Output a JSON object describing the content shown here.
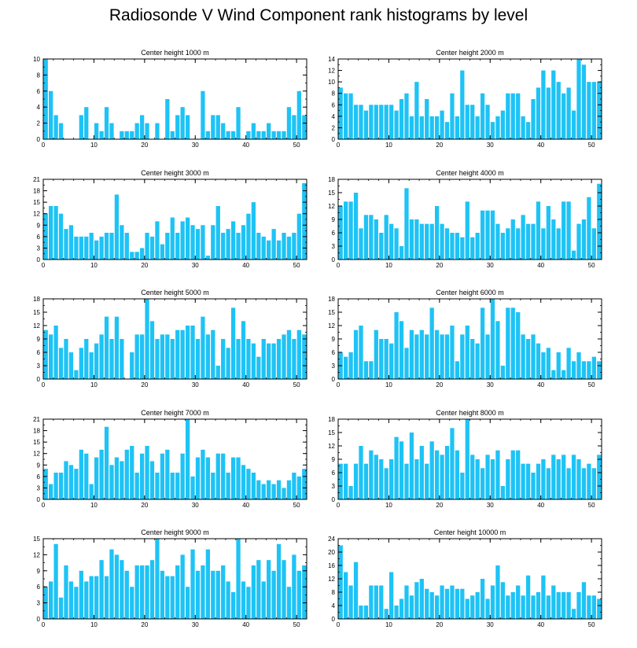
{
  "title": "Radiosonde V Wind Component rank histograms by level",
  "bar_color": "#1ec3f5",
  "chart_data": [
    {
      "type": "bar",
      "title": "Center height 1000 m",
      "xlim": [
        0,
        52
      ],
      "ylim": [
        0,
        10
      ],
      "xticks": [
        0,
        10,
        20,
        30,
        40,
        50
      ],
      "yticks": [
        0,
        2,
        4,
        6,
        8,
        10
      ],
      "x": [
        0,
        1,
        2,
        3,
        4,
        5,
        6,
        7,
        8,
        9,
        10,
        11,
        12,
        13,
        14,
        15,
        16,
        17,
        18,
        19,
        20,
        21,
        22,
        23,
        24,
        25,
        26,
        27,
        28,
        29,
        30,
        31,
        32,
        33,
        34,
        35,
        36,
        37,
        38,
        39,
        40,
        41,
        42,
        43,
        44,
        45,
        46,
        47,
        48,
        49,
        50,
        51
      ],
      "values": [
        10,
        6,
        3,
        2,
        0,
        0,
        0,
        3,
        4,
        0,
        2,
        1,
        4,
        2,
        0,
        1,
        1,
        1,
        2,
        3,
        2,
        0,
        2,
        0,
        5,
        1,
        3,
        4,
        3,
        0,
        0,
        6,
        1,
        3,
        3,
        2,
        1,
        1,
        4,
        0,
        1,
        2,
        1,
        1,
        2,
        1,
        1,
        1,
        4,
        3,
        6,
        3
      ]
    },
    {
      "type": "bar",
      "title": "Center height 2000 m",
      "xlim": [
        0,
        52
      ],
      "ylim": [
        0,
        14
      ],
      "xticks": [
        0,
        10,
        20,
        30,
        40,
        50
      ],
      "yticks": [
        0,
        2,
        4,
        6,
        8,
        10,
        12,
        14
      ],
      "x": [
        0,
        1,
        2,
        3,
        4,
        5,
        6,
        7,
        8,
        9,
        10,
        11,
        12,
        13,
        14,
        15,
        16,
        17,
        18,
        19,
        20,
        21,
        22,
        23,
        24,
        25,
        26,
        27,
        28,
        29,
        30,
        31,
        32,
        33,
        34,
        35,
        36,
        37,
        38,
        39,
        40,
        41,
        42,
        43,
        44,
        45,
        46,
        47,
        48,
        49,
        50,
        51
      ],
      "values": [
        9,
        8,
        8,
        6,
        6,
        5,
        6,
        6,
        6,
        6,
        6,
        5,
        7,
        8,
        4,
        10,
        4,
        7,
        4,
        4,
        5,
        3,
        8,
        4,
        12,
        6,
        6,
        4,
        8,
        6,
        3,
        4,
        5,
        8,
        8,
        8,
        4,
        3,
        7,
        9,
        12,
        9,
        12,
        10,
        8,
        9,
        5,
        14,
        13,
        10,
        10,
        10
      ]
    },
    {
      "type": "bar",
      "title": "Center height 3000 m",
      "xlim": [
        0,
        52
      ],
      "ylim": [
        0,
        21
      ],
      "xticks": [
        0,
        10,
        20,
        30,
        40,
        50
      ],
      "yticks": [
        0,
        3,
        6,
        9,
        12,
        15,
        18,
        21
      ],
      "x": [
        0,
        1,
        2,
        3,
        4,
        5,
        6,
        7,
        8,
        9,
        10,
        11,
        12,
        13,
        14,
        15,
        16,
        17,
        18,
        19,
        20,
        21,
        22,
        23,
        24,
        25,
        26,
        27,
        28,
        29,
        30,
        31,
        32,
        33,
        34,
        35,
        36,
        37,
        38,
        39,
        40,
        41,
        42,
        43,
        44,
        45,
        46,
        47,
        48,
        49,
        50,
        51
      ],
      "values": [
        12,
        14,
        14,
        12,
        8,
        9,
        6,
        6,
        6,
        7,
        5,
        6,
        7,
        7,
        17,
        9,
        7,
        2,
        2,
        3,
        7,
        6,
        10,
        4,
        7,
        11,
        7,
        10,
        11,
        9,
        8,
        9,
        1,
        9,
        14,
        7,
        8,
        10,
        7,
        9,
        12,
        15,
        7,
        6,
        5,
        8,
        5,
        7,
        6,
        7,
        12,
        20
      ]
    },
    {
      "type": "bar",
      "title": "Center height 4000 m",
      "xlim": [
        0,
        52
      ],
      "ylim": [
        0,
        18
      ],
      "xticks": [
        0,
        10,
        20,
        30,
        40,
        50
      ],
      "yticks": [
        0,
        3,
        6,
        9,
        12,
        15,
        18
      ],
      "x": [
        0,
        1,
        2,
        3,
        4,
        5,
        6,
        7,
        8,
        9,
        10,
        11,
        12,
        13,
        14,
        15,
        16,
        17,
        18,
        19,
        20,
        21,
        22,
        23,
        24,
        25,
        26,
        27,
        28,
        29,
        30,
        31,
        32,
        33,
        34,
        35,
        36,
        37,
        38,
        39,
        40,
        41,
        42,
        43,
        44,
        45,
        46,
        47,
        48,
        49,
        50,
        51
      ],
      "values": [
        12,
        13,
        13,
        15,
        7,
        10,
        10,
        9,
        6,
        10,
        8,
        7,
        3,
        16,
        9,
        9,
        8,
        8,
        8,
        12,
        8,
        7,
        6,
        6,
        5,
        13,
        5,
        6,
        11,
        11,
        11,
        8,
        6,
        7,
        9,
        7,
        10,
        8,
        8,
        13,
        7,
        12,
        9,
        7,
        13,
        13,
        2,
        8,
        9,
        14,
        7,
        17
      ]
    },
    {
      "type": "bar",
      "title": "Center height 5000 m",
      "xlim": [
        0,
        52
      ],
      "ylim": [
        0,
        18
      ],
      "xticks": [
        0,
        10,
        20,
        30,
        40,
        50
      ],
      "yticks": [
        0,
        3,
        6,
        9,
        12,
        15,
        18
      ],
      "x": [
        0,
        1,
        2,
        3,
        4,
        5,
        6,
        7,
        8,
        9,
        10,
        11,
        12,
        13,
        14,
        15,
        16,
        17,
        18,
        19,
        20,
        21,
        22,
        23,
        24,
        25,
        26,
        27,
        28,
        29,
        30,
        31,
        32,
        33,
        34,
        35,
        36,
        37,
        38,
        39,
        40,
        41,
        42,
        43,
        44,
        45,
        46,
        47,
        48,
        49,
        50,
        51
      ],
      "values": [
        11,
        10,
        12,
        7,
        9,
        6,
        2,
        7,
        9,
        6,
        8,
        10,
        14,
        9,
        14,
        9,
        0,
        6,
        10,
        10,
        18,
        13,
        9,
        10,
        10,
        9,
        11,
        11,
        12,
        12,
        9,
        14,
        10,
        11,
        3,
        9,
        7,
        16,
        9,
        13,
        9,
        8,
        5,
        9,
        8,
        8,
        9,
        10,
        11,
        9,
        11,
        10
      ]
    },
    {
      "type": "bar",
      "title": "Center height 6000 m",
      "xlim": [
        0,
        52
      ],
      "ylim": [
        0,
        18
      ],
      "xticks": [
        0,
        10,
        20,
        30,
        40,
        50
      ],
      "yticks": [
        0,
        3,
        6,
        9,
        12,
        15,
        18
      ],
      "x": [
        0,
        1,
        2,
        3,
        4,
        5,
        6,
        7,
        8,
        9,
        10,
        11,
        12,
        13,
        14,
        15,
        16,
        17,
        18,
        19,
        20,
        21,
        22,
        23,
        24,
        25,
        26,
        27,
        28,
        29,
        30,
        31,
        32,
        33,
        34,
        35,
        36,
        37,
        38,
        39,
        40,
        41,
        42,
        43,
        44,
        45,
        46,
        47,
        48,
        49,
        50,
        51
      ],
      "values": [
        6,
        5,
        6,
        11,
        12,
        4,
        4,
        11,
        9,
        9,
        8,
        15,
        13,
        7,
        11,
        10,
        11,
        10,
        16,
        11,
        10,
        10,
        12,
        4,
        10,
        12,
        9,
        8,
        16,
        10,
        18,
        13,
        3,
        16,
        16,
        15,
        10,
        9,
        10,
        8,
        6,
        7,
        2,
        6,
        2,
        7,
        4,
        6,
        4,
        4,
        5,
        4
      ]
    },
    {
      "type": "bar",
      "title": "Center height 7000 m",
      "xlim": [
        0,
        52
      ],
      "ylim": [
        0,
        21
      ],
      "xticks": [
        0,
        10,
        20,
        30,
        40,
        50
      ],
      "yticks": [
        0,
        3,
        6,
        9,
        12,
        15,
        18,
        21
      ],
      "x": [
        0,
        1,
        2,
        3,
        4,
        5,
        6,
        7,
        8,
        9,
        10,
        11,
        12,
        13,
        14,
        15,
        16,
        17,
        18,
        19,
        20,
        21,
        22,
        23,
        24,
        25,
        26,
        27,
        28,
        29,
        30,
        31,
        32,
        33,
        34,
        35,
        36,
        37,
        38,
        39,
        40,
        41,
        42,
        43,
        44,
        45,
        46,
        47,
        48,
        49,
        50,
        51
      ],
      "values": [
        8,
        4,
        7,
        7,
        10,
        9,
        8,
        13,
        12,
        4,
        11,
        13,
        19,
        9,
        11,
        10,
        13,
        14,
        7,
        12,
        14,
        10,
        7,
        12,
        13,
        7,
        7,
        12,
        21,
        6,
        11,
        13,
        11,
        7,
        12,
        12,
        7,
        11,
        11,
        9,
        8,
        7,
        5,
        4,
        5,
        4,
        5,
        3,
        5,
        7,
        6,
        8
      ]
    },
    {
      "type": "bar",
      "title": "Center height 8000 m",
      "xlim": [
        0,
        52
      ],
      "ylim": [
        0,
        18
      ],
      "xticks": [
        0,
        10,
        20,
        30,
        40,
        50
      ],
      "yticks": [
        0,
        3,
        6,
        9,
        12,
        15,
        18
      ],
      "x": [
        0,
        1,
        2,
        3,
        4,
        5,
        6,
        7,
        8,
        9,
        10,
        11,
        12,
        13,
        14,
        15,
        16,
        17,
        18,
        19,
        20,
        21,
        22,
        23,
        24,
        25,
        26,
        27,
        28,
        29,
        30,
        31,
        32,
        33,
        34,
        35,
        36,
        37,
        38,
        39,
        40,
        41,
        42,
        43,
        44,
        45,
        46,
        47,
        48,
        49,
        50,
        51
      ],
      "values": [
        8,
        8,
        3,
        8,
        12,
        8,
        11,
        10,
        9,
        7,
        9,
        14,
        13,
        8,
        15,
        9,
        12,
        8,
        13,
        11,
        10,
        12,
        16,
        11,
        6,
        18,
        10,
        9,
        7,
        10,
        9,
        11,
        3,
        9,
        11,
        11,
        8,
        8,
        6,
        8,
        9,
        7,
        10,
        9,
        10,
        7,
        10,
        9,
        7,
        8,
        7,
        10
      ]
    },
    {
      "type": "bar",
      "title": "Center height 9000 m",
      "xlim": [
        0,
        52
      ],
      "ylim": [
        0,
        15
      ],
      "xticks": [
        0,
        10,
        20,
        30,
        40,
        50
      ],
      "yticks": [
        0,
        3,
        6,
        9,
        12,
        15
      ],
      "x": [
        0,
        1,
        2,
        3,
        4,
        5,
        6,
        7,
        8,
        9,
        10,
        11,
        12,
        13,
        14,
        15,
        16,
        17,
        18,
        19,
        20,
        21,
        22,
        23,
        24,
        25,
        26,
        27,
        28,
        29,
        30,
        31,
        32,
        33,
        34,
        35,
        36,
        37,
        38,
        39,
        40,
        41,
        42,
        43,
        44,
        45,
        46,
        47,
        48,
        49,
        50,
        51
      ],
      "values": [
        6,
        7,
        14,
        4,
        10,
        7,
        6,
        9,
        7,
        8,
        8,
        11,
        8,
        13,
        12,
        11,
        9,
        6,
        10,
        10,
        10,
        11,
        15,
        9,
        8,
        8,
        10,
        12,
        6,
        13,
        9,
        10,
        13,
        9,
        9,
        10,
        7,
        5,
        15,
        7,
        6,
        10,
        11,
        7,
        11,
        9,
        14,
        11,
        6,
        12,
        9,
        10
      ]
    },
    {
      "type": "bar",
      "title": "Center height 10000 m",
      "xlim": [
        0,
        52
      ],
      "ylim": [
        0,
        24
      ],
      "xticks": [
        0,
        10,
        20,
        30,
        40,
        50
      ],
      "yticks": [
        0,
        4,
        8,
        12,
        16,
        20,
        24
      ],
      "x": [
        0,
        1,
        2,
        3,
        4,
        5,
        6,
        7,
        8,
        9,
        10,
        11,
        12,
        13,
        14,
        15,
        16,
        17,
        18,
        19,
        20,
        21,
        22,
        23,
        24,
        25,
        26,
        27,
        28,
        29,
        30,
        31,
        32,
        33,
        34,
        35,
        36,
        37,
        38,
        39,
        40,
        41,
        42,
        43,
        44,
        45,
        46,
        47,
        48,
        49,
        50,
        51
      ],
      "values": [
        22,
        14,
        10,
        17,
        4,
        4,
        10,
        10,
        10,
        3,
        14,
        4,
        6,
        10,
        7,
        11,
        12,
        9,
        8,
        7,
        10,
        9,
        10,
        9,
        9,
        6,
        7,
        8,
        12,
        6,
        10,
        16,
        11,
        7,
        8,
        10,
        7,
        13,
        7,
        8,
        13,
        7,
        10,
        8,
        8,
        8,
        3,
        8,
        11,
        7,
        7,
        6
      ]
    }
  ]
}
